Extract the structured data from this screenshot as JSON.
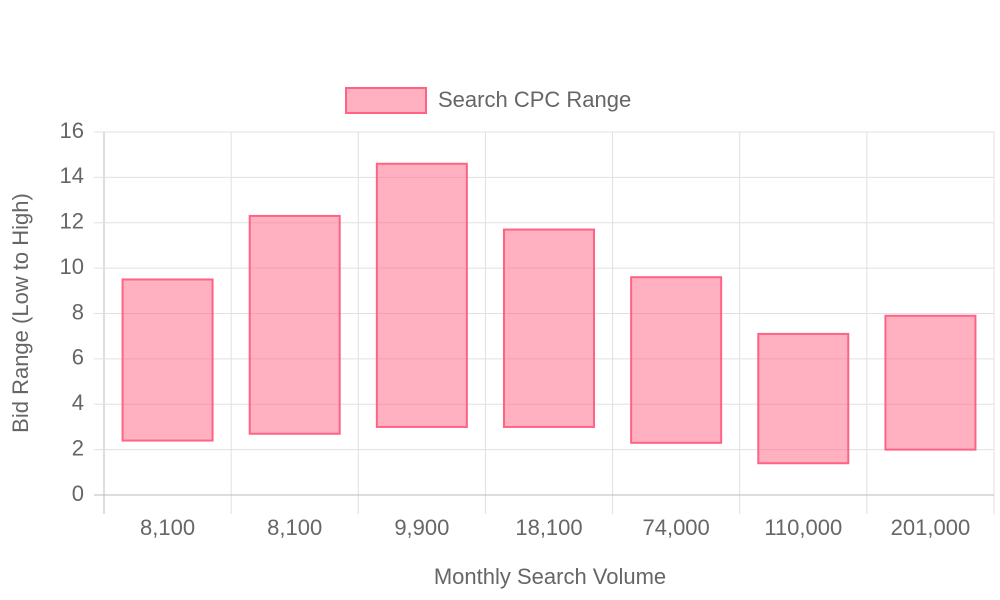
{
  "chart_data": {
    "type": "floating-bar",
    "x_label": "Monthly Search Volume",
    "y_label": "Bid Range (Low to High)",
    "categories": [
      "8,100",
      "8,100",
      "9,900",
      "18,100",
      "74,000",
      "110,000",
      "201,000"
    ],
    "series": [
      {
        "name": "Search CPC Range",
        "color": "#ff6384",
        "values": [
          [
            2.4,
            9.5
          ],
          [
            2.7,
            12.3
          ],
          [
            3.0,
            14.6
          ],
          [
            3.0,
            11.7
          ],
          [
            2.3,
            9.6
          ],
          [
            1.4,
            7.1
          ],
          [
            2.0,
            7.9
          ]
        ]
      }
    ],
    "ylim": [
      0,
      16
    ],
    "yticks": [
      0,
      2,
      4,
      6,
      8,
      10,
      12,
      14,
      16
    ],
    "grid": true,
    "legend": "top"
  }
}
